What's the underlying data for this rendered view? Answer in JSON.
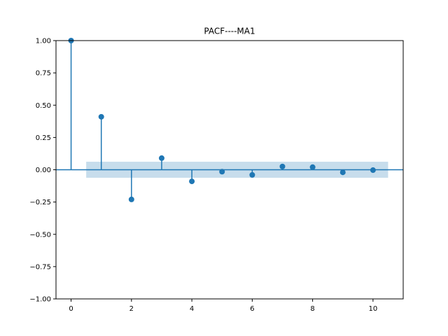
{
  "chart_data": {
    "type": "stem",
    "title": "PACF----MA1",
    "xlabel": "",
    "ylabel": "",
    "xlim": [
      -0.5,
      11
    ],
    "ylim": [
      -1.0,
      1.0
    ],
    "x_ticks": [
      0,
      2,
      4,
      6,
      8,
      10
    ],
    "x_tick_labels": [
      "0",
      "2",
      "4",
      "6",
      "8",
      "10"
    ],
    "y_ticks": [
      -1.0,
      -0.75,
      -0.5,
      -0.25,
      0.0,
      0.25,
      0.5,
      0.75,
      1.0
    ],
    "y_tick_labels": [
      "−1.00",
      "−0.75",
      "−0.50",
      "−0.25",
      "0.00",
      "0.25",
      "0.50",
      "0.75",
      "1.00"
    ],
    "lags": [
      0,
      1,
      2,
      3,
      4,
      5,
      6,
      7,
      8,
      9,
      10
    ],
    "values": [
      1.0,
      0.41,
      -0.23,
      0.09,
      -0.09,
      -0.015,
      -0.04,
      0.025,
      0.02,
      -0.02,
      -0.003
    ],
    "confidence_band": {
      "x_range": [
        0.5,
        10.5
      ],
      "lower": -0.062,
      "upper": 0.062
    },
    "grid": false,
    "legend": "none"
  },
  "colors": {
    "marker": "#1f77b4",
    "band": "#1f77b4",
    "axes": "#000000"
  }
}
